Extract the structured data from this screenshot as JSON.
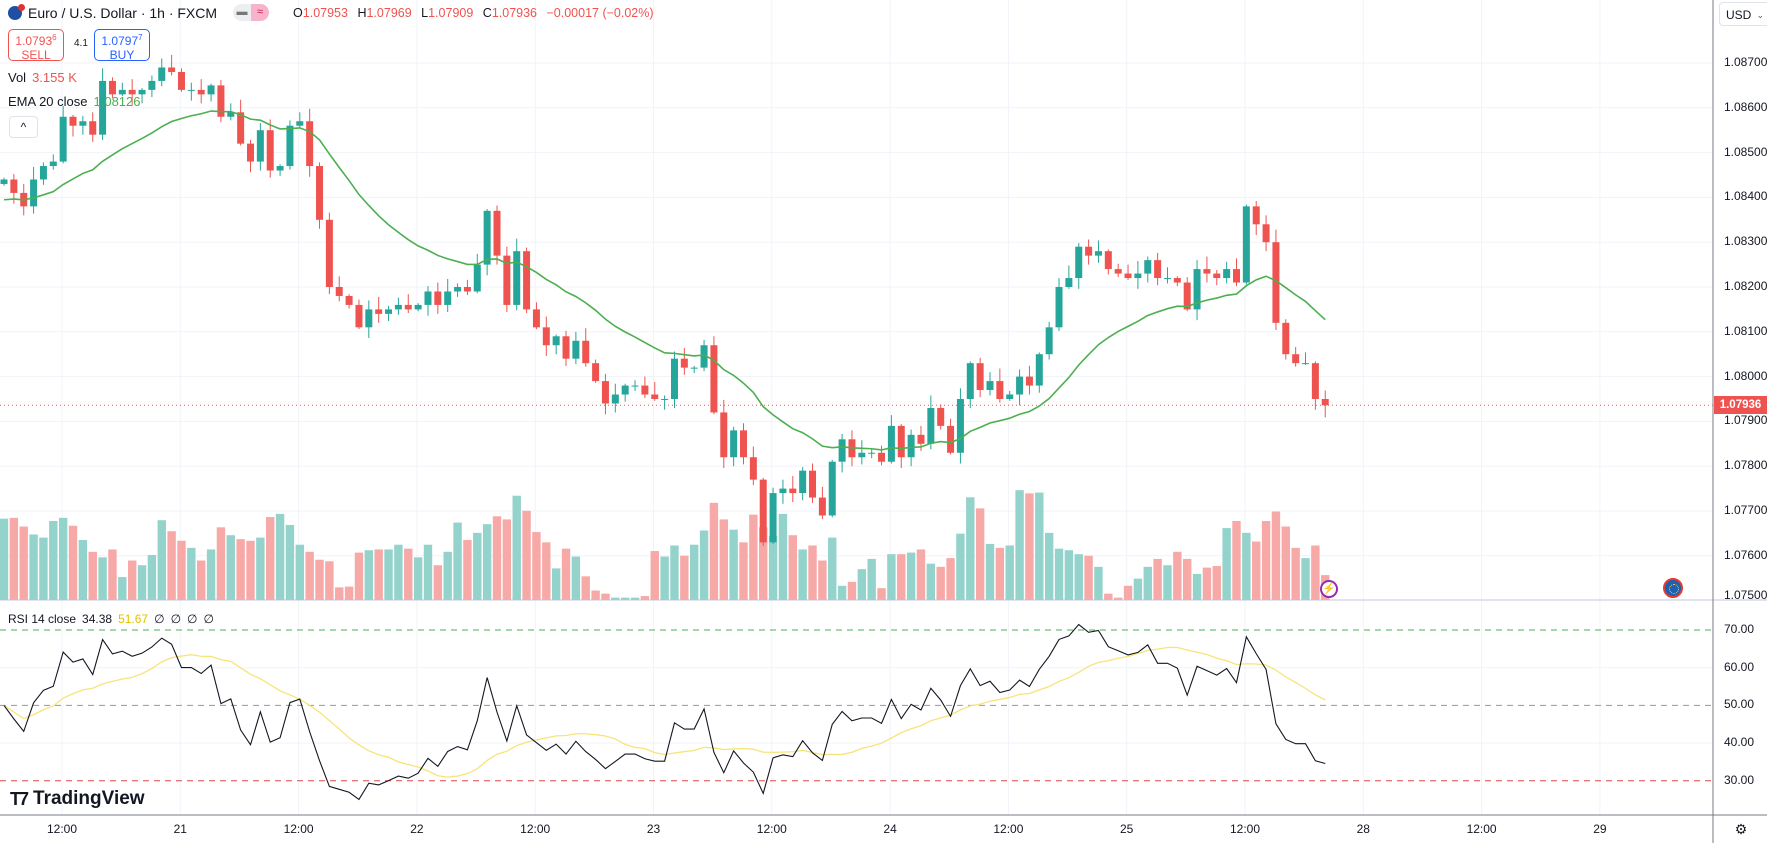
{
  "header": {
    "symbol_title": "Euro / U.S. Dollar · 1h · FXCM",
    "pill_left": "▬",
    "pill_right": "≈",
    "ohlc": {
      "o_label": "O",
      "o": "1.07953",
      "h_label": "H",
      "h": "1.07969",
      "l_label": "L",
      "l": "1.07909",
      "c_label": "C",
      "c": "1.07936",
      "change": "−0.00017 (−0.02%)"
    }
  },
  "trade": {
    "sell_price_main": "1.0793",
    "sell_price_pip": "6",
    "sell_label": "SELL",
    "spread": "4.1",
    "buy_price_main": "1.0797",
    "buy_price_pip": "7",
    "buy_label": "BUY"
  },
  "indicators": {
    "vol_label": "Vol",
    "vol_value": "3.155 K",
    "ema_label": "EMA 20 close",
    "ema_value": "1.08126",
    "collapse_icon": "^"
  },
  "rsi": {
    "label": "RSI 14 close",
    "value": "34.38",
    "ma_value": "51.67",
    "extra": [
      "∅",
      "∅",
      "∅",
      "∅"
    ]
  },
  "price_axis": {
    "currency": "USD",
    "ticks": [
      "1.08700",
      "1.08600",
      "1.08500",
      "1.08400",
      "1.08300",
      "1.08200",
      "1.08100",
      "1.08000",
      "1.07900",
      "1.07800",
      "1.07700",
      "1.07600",
      "1.07500"
    ],
    "current_price": "1.07936"
  },
  "rsi_axis": {
    "ticks": [
      "70.00",
      "60.00",
      "50.00",
      "40.00",
      "30.00"
    ]
  },
  "time_axis": {
    "labels": [
      "12:00",
      "21",
      "12:00",
      "22",
      "12:00",
      "23",
      "12:00",
      "24",
      "12:00",
      "25",
      "12:00",
      "28",
      "12:00",
      "29"
    ]
  },
  "logo": "TradingView",
  "icons": {
    "settings": "⚙",
    "event": "⚡"
  },
  "colors": {
    "up": "#26a69a",
    "down": "#ef5350",
    "vol_up": "#93d3cc",
    "vol_down": "#f7a9a7",
    "ema": "#4caf50",
    "rsi": "#131722",
    "rsi_ma": "#f7e479",
    "grid": "#f0f3fa"
  },
  "chart_data": {
    "type": "candlestick",
    "symbol": "EURUSD",
    "interval": "1h",
    "price_range": [
      1.075,
      1.0884
    ],
    "first_open": 1.0843,
    "close": [
      1.0844,
      1.0841,
      1.0838,
      1.0844,
      1.0847,
      1.0848,
      1.0858,
      1.0856,
      1.0857,
      1.0854,
      1.0866,
      1.0863,
      1.0864,
      1.0863,
      1.0864,
      1.0866,
      1.0869,
      1.0868,
      1.0864,
      1.0864,
      1.0863,
      1.0865,
      1.0858,
      1.0859,
      1.0852,
      1.0848,
      1.0855,
      1.0846,
      1.0847,
      1.0856,
      1.0857,
      1.0847,
      1.0835,
      1.082,
      1.0818,
      1.0816,
      1.0811,
      1.0815,
      1.0814,
      1.0815,
      1.0816,
      1.0815,
      1.0816,
      1.0819,
      1.0816,
      1.0819,
      1.082,
      1.0819,
      1.0825,
      1.0837,
      1.0827,
      1.0816,
      1.0828,
      1.0815,
      1.0811,
      1.0807,
      1.0809,
      1.0804,
      1.0808,
      1.0803,
      1.0799,
      1.0794,
      1.0796,
      1.0798,
      1.0798,
      1.0796,
      1.0795,
      1.0795,
      1.0804,
      1.0802,
      1.0802,
      1.0807,
      1.0792,
      1.0782,
      1.0788,
      1.0782,
      1.0777,
      1.0763,
      1.0774,
      1.0775,
      1.0774,
      1.0779,
      1.0773,
      1.0769,
      1.0781,
      1.0786,
      1.0782,
      1.0783,
      1.0783,
      1.0781,
      1.0789,
      1.0782,
      1.0787,
      1.0785,
      1.0793,
      1.0789,
      1.0783,
      1.0795,
      1.0803,
      1.0797,
      1.0799,
      1.0795,
      1.0796,
      1.08,
      1.0798,
      1.0805,
      1.0811,
      1.082,
      1.0822,
      1.0829,
      1.0827,
      1.0828,
      1.0824,
      1.0823,
      1.0822,
      1.0823,
      1.0826,
      1.0822,
      1.0822,
      1.0821,
      1.0815,
      1.0824,
      1.0823,
      1.0822,
      1.0824,
      1.0821,
      1.0838,
      1.0834,
      1.083,
      1.0812,
      1.0805,
      1.0803,
      1.0803,
      1.0795,
      1.07936
    ],
    "volume_k": [
      10.3,
      10.4,
      9.3,
      8.3,
      7.9,
      10.0,
      10.4,
      9.4,
      7.6,
      6.1,
      5.4,
      6.4,
      2.9,
      5.0,
      4.4,
      5.7,
      10.1,
      8.7,
      7.5,
      6.6,
      5.0,
      6.4,
      9.2,
      8.2,
      7.7,
      7.5,
      7.9,
      10.5,
      10.9,
      9.5,
      7.0,
      6.1,
      5.1,
      4.9,
      1.6,
      1.7,
      6.0,
      6.3,
      6.4,
      6.4,
      7.0,
      6.5,
      5.4,
      7.0,
      4.4,
      6.1,
      9.8,
      7.6,
      8.5,
      9.6,
      10.6,
      10.2,
      13.2,
      11.3,
      8.6,
      7.3,
      4.0,
      6.5,
      5.5,
      3.0,
      1.2,
      0.8,
      0.3,
      0.3,
      0.3,
      0.5,
      6.2,
      5.5,
      6.9,
      5.6,
      7.0,
      8.8,
      12.3,
      10.2,
      8.9,
      7.3,
      10.8,
      9.2,
      8.1,
      10.9,
      8.2,
      6.4,
      6.9,
      5.0,
      7.9,
      1.8,
      2.3,
      3.9,
      5.2,
      1.5,
      5.8,
      5.8,
      6.0,
      6.4,
      4.6,
      4.2,
      5.3,
      8.4,
      13.0,
      11.6,
      7.1,
      6.6,
      6.9,
      13.9,
      13.5,
      13.6,
      8.5,
      6.5,
      6.3,
      5.8,
      5.6,
      4.2,
      0.8,
      0.3,
      1.8,
      2.7,
      4.2,
      5.2,
      4.4,
      6.1,
      5.2,
      3.3,
      4.1,
      4.3,
      9.1,
      10.0,
      8.5,
      7.4,
      10.0,
      11.2,
      9.3,
      6.6,
      5.3,
      6.9,
      3.155
    ],
    "last_high": 1.07969,
    "last_low": 1.07909,
    "ema_period": 20,
    "ema_seed": 1.0839,
    "rsi_period": 14,
    "rsi_ma_period": 14,
    "rsi_levels": [
      70,
      50,
      30
    ],
    "rsi_range": [
      22,
      78
    ]
  }
}
